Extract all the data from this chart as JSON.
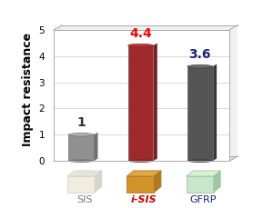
{
  "categories": [
    "SIS",
    "i-SIS",
    "GFRP"
  ],
  "values": [
    1.0,
    4.4,
    3.6
  ],
  "bar_face_colors": [
    "#909090",
    "#9e2a2b",
    "#555555"
  ],
  "bar_side_colors": [
    "#707070",
    "#7a1f20",
    "#383838"
  ],
  "bar_top_colors": [
    "#b0b0b0",
    "#c43535",
    "#707070"
  ],
  "value_labels": [
    "1",
    "4.4",
    "3.6"
  ],
  "value_label_colors": [
    "#333333",
    "#ff0000",
    "#1a237e"
  ],
  "xlabel_colors": [
    "#777777",
    "#cc0000",
    "#1a237e"
  ],
  "ylabel": "Impact resistance",
  "ylim": [
    0,
    5
  ],
  "yticks": [
    0,
    1,
    2,
    3,
    4,
    5
  ],
  "bg_color": "#ffffff",
  "panel_bg": "#ffffff",
  "value_fontsize": 10,
  "label_fontsize": 8,
  "ylabel_fontsize": 9,
  "photo_colors_face": [
    "#f0ece0",
    "#d4922a",
    "#c8e6c9"
  ],
  "photo_colors_side": [
    "#d8d4c8",
    "#b07820",
    "#a0c8a0"
  ],
  "photo_colors_top": [
    "#e8e4d8",
    "#e0a840",
    "#d8f0d8"
  ]
}
